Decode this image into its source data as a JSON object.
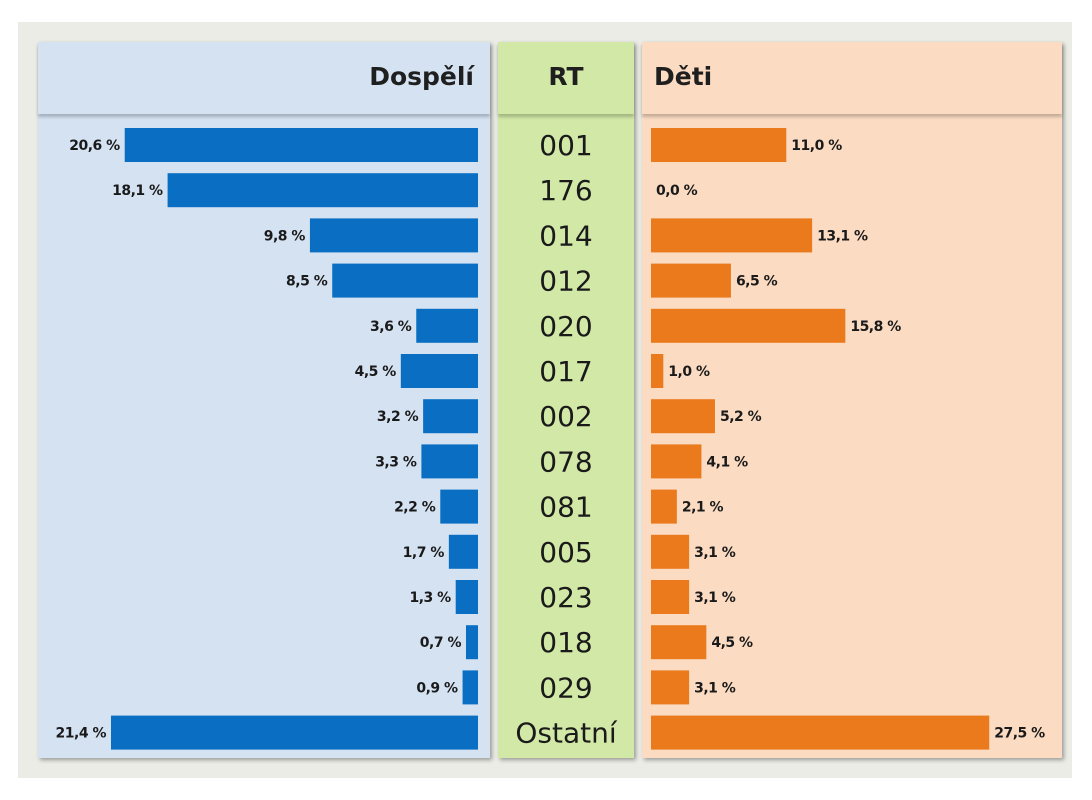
{
  "headers": {
    "left": "Dospělí",
    "mid": "RT",
    "right": "Děti"
  },
  "colors": {
    "adults_bar": "#0a6fc2",
    "children_bar": "#ea7a1c",
    "adults_bg": "#d4e2f2",
    "rt_bg": "#d2e8a6",
    "children_bg": "#fbdcc3"
  },
  "chart_data": {
    "type": "bar",
    "categories": [
      "001",
      "176",
      "014",
      "012",
      "020",
      "017",
      "002",
      "078",
      "081",
      "005",
      "023",
      "018",
      "029",
      "Ostatní"
    ],
    "series": [
      {
        "name": "Dospělí",
        "values": [
          20.6,
          18.1,
          9.8,
          8.5,
          3.6,
          4.5,
          3.2,
          3.3,
          2.2,
          1.7,
          1.3,
          0.7,
          0.9,
          21.4
        ],
        "labels": [
          "20,6 %",
          "18,1 %",
          "9,8 %",
          "8,5 %",
          "3,6 %",
          "4,5 %",
          "3,2 %",
          "3,3 %",
          "2,2 %",
          "1,7 %",
          "1,3 %",
          "0,7 %",
          "0,9 %",
          "21,4 %"
        ]
      },
      {
        "name": "Děti",
        "values": [
          11.0,
          0.0,
          13.1,
          6.5,
          15.8,
          1.0,
          5.2,
          4.1,
          2.1,
          3.1,
          3.1,
          4.5,
          3.1,
          27.5
        ],
        "labels": [
          "11,0 %",
          "0,0 %",
          "13,1 %",
          "6,5 %",
          "15,8 %",
          "1,0 %",
          "5,2 %",
          "4,1 %",
          "2,1 %",
          "3,1 %",
          "3,1 %",
          "4,5 %",
          "3,1 %",
          "27,5 %"
        ]
      }
    ]
  }
}
